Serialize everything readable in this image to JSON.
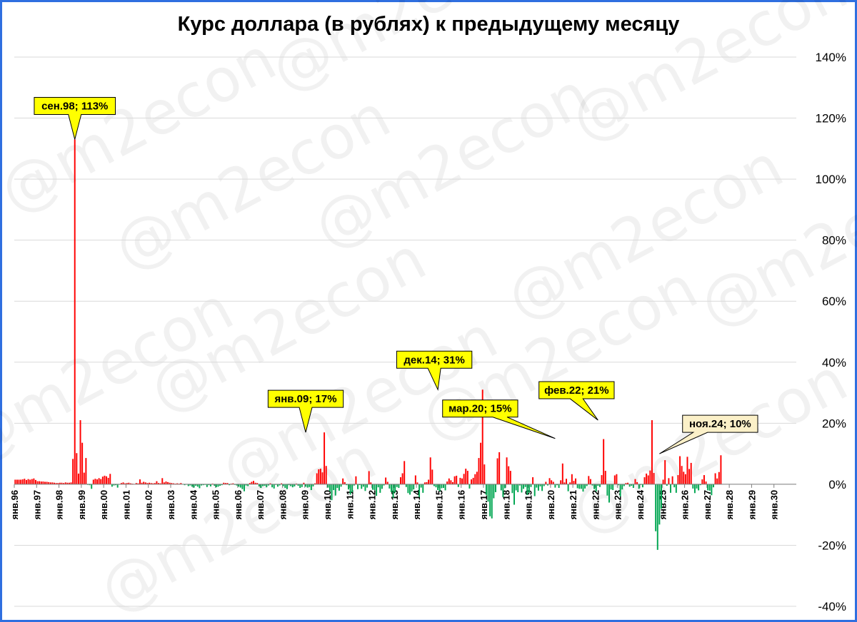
{
  "colors": {
    "frame": "#2f6fe0",
    "positive": "#ff0000",
    "negative": "#00a651",
    "callout_fill": "#ffff00",
    "callout_last_fill": "#fbf0c8",
    "grid": "#d9d9d9"
  },
  "watermark": "@m2econ",
  "chart_data": {
    "type": "bar",
    "title": "Курс доллара (в рублях) к предыдущему месяцу",
    "xlabel": "",
    "ylabel": "",
    "ylim": [
      -40,
      140
    ],
    "y_ticks": [
      {
        "value": 140,
        "label": "140%"
      },
      {
        "value": 120,
        "label": "120%"
      },
      {
        "value": 100,
        "label": "100%"
      },
      {
        "value": 80,
        "label": "80%"
      },
      {
        "value": 60,
        "label": "60%"
      },
      {
        "value": 40,
        "label": "40%"
      },
      {
        "value": 20,
        "label": "20%"
      },
      {
        "value": 0,
        "label": "0%"
      },
      {
        "value": -20,
        "label": "-20%"
      },
      {
        "value": -40,
        "label": "-40%"
      }
    ],
    "grid": true,
    "y_axis_side": "right",
    "x_tick_labels": [
      "янв.96",
      "янв.97",
      "янв.98",
      "янв.99",
      "янв.00",
      "янв.01",
      "янв.02",
      "янв.03",
      "янв.04",
      "янв.05",
      "янв.06",
      "янв.07",
      "янв.08",
      "янв.09",
      "янв.10",
      "янв.11",
      "янв.12",
      "янв.13",
      "янв.14",
      "янв.15",
      "янв.16",
      "янв.17",
      "янв.18",
      "янв.19",
      "янв.20",
      "янв.21",
      "янв.22",
      "янв.23",
      "янв.24",
      "янв.25",
      "янв.26",
      "янв.27",
      "янв.28",
      "янв.29",
      "янв.30"
    ],
    "x_start": "янв.96",
    "x_axis_months": 420,
    "annotations": [
      {
        "month_index": 32,
        "label": "сен.98; 113%",
        "value": 113,
        "style": "highlight"
      },
      {
        "month_index": 156,
        "label": "янв.09; 17%",
        "value": 17,
        "style": "highlight"
      },
      {
        "month_index": 227,
        "label": "дек.14; 31%",
        "value": 31,
        "style": "highlight"
      },
      {
        "month_index": 290,
        "label": "мар.20; 15%",
        "value": 15,
        "style": "highlight"
      },
      {
        "month_index": 313,
        "label": "фев.22; 21%",
        "value": 21,
        "style": "highlight"
      },
      {
        "month_index": 346,
        "label": "ноя.24; 10%",
        "value": 10,
        "style": "latest"
      }
    ],
    "series": [
      {
        "values": [
          1.5,
          1.5,
          1.5,
          1.5,
          1.6,
          1.8,
          1.4,
          1.7,
          1.5,
          1.7,
          1.9,
          1.4,
          1.0,
          1.0,
          0.9,
          0.9,
          0.8,
          0.8,
          0.7,
          0.6,
          0.6,
          0.5,
          0.4,
          0.4,
          0.5,
          0.5,
          0.4,
          0.6,
          0.5,
          0.5,
          0.6,
          8.3,
          113,
          10.2,
          3.5,
          21.0,
          13.6,
          3.8,
          8.6,
          -0.2,
          -0.3,
          -1.5,
          1.5,
          1.8,
          1.6,
          2.0,
          1.7,
          2.5,
          2.8,
          2.6,
          2.1,
          3.4,
          -0.8,
          -0.4,
          -0.3,
          -1.1,
          -0.1,
          0.4,
          0.6,
          0.3,
          0.4,
          0.5,
          0.3,
          0.2,
          0.1,
          0.4,
          0.3,
          1.6,
          0.5,
          0.8,
          0.6,
          0.4,
          0.5,
          0.4,
          0.3,
          0.4,
          1.0,
          0.4,
          0.3,
          2.0,
          0.6,
          0.9,
          0.7,
          0.5,
          0.4,
          0.3,
          0.2,
          0.3,
          0.2,
          0.4,
          0.1,
          -0.3,
          -0.1,
          -0.6,
          -0.4,
          -0.8,
          -1.1,
          -0.5,
          -0.8,
          -1.3,
          -0.4,
          -0.3,
          -0.2,
          -0.9,
          -0.3,
          -0.7,
          0.2,
          -0.5,
          -1.0,
          -0.8,
          -0.5,
          -0.3,
          0.5,
          0.4,
          0.4,
          -0.3,
          0.2,
          0.3,
          -0.2,
          -0.4,
          -0.8,
          -1.1,
          -1.6,
          -2.3,
          -0.4,
          -0.6,
          0.4,
          0.8,
          1.1,
          0.5,
          0.4,
          -0.7,
          -1.2,
          -0.6,
          -0.5,
          -1.0,
          -0.4,
          0.3,
          -1.0,
          -1.4,
          -0.2,
          -0.8,
          -0.4,
          0.3,
          -0.6,
          -1.2,
          -1.6,
          -0.3,
          -0.6,
          -1.0,
          -0.7,
          0.2,
          -0.5,
          -1.2,
          -0.9,
          0.5,
          -0.8,
          -1.1,
          -0.9,
          -1.9,
          -0.7,
          0.3,
          3.6,
          4.9,
          5.1,
          3.9,
          17.0,
          6.0,
          -1.1,
          -2.3,
          -5.2,
          -1.9,
          -3.7,
          -1.2,
          -2.1,
          -0.8,
          1.9,
          0.7,
          -0.3,
          -1.7,
          -3.4,
          -2.6,
          -0.4,
          2.6,
          -1.6,
          -0.3,
          -1.5,
          -0.8,
          -2.2,
          -1.1,
          4.3,
          0.6,
          -1.8,
          -1.9,
          -3.8,
          -1.0,
          -2.8,
          -1.5,
          -0.4,
          2.2,
          0.8,
          -1.4,
          -2.6,
          -4.5,
          -2.7,
          -0.9,
          -1.2,
          2.3,
          3.6,
          7.6,
          -0.9,
          -2.9,
          -3.4,
          -2.4,
          -1.7,
          2.9,
          0.6,
          -4.2,
          -1.1,
          -2.8,
          0.6,
          0.7,
          1.5,
          8.8,
          4.8,
          -0.6,
          -1.0,
          -1.9,
          -2.3,
          -1.3,
          -1.2,
          -2.0,
          0.9,
          1.9,
          1.3,
          0.7,
          2.6,
          2.8,
          -0.9,
          2.1,
          1.9,
          3.4,
          5.1,
          4.4,
          -1.4,
          1.6,
          2.1,
          3.3,
          4.1,
          8.6,
          13.6,
          31.0,
          6.5,
          -3.5,
          -5.7,
          -10.5,
          -11.2,
          -4.6,
          -2.6,
          8.5,
          10.5,
          -2.0,
          -4.2,
          -1.3,
          8.8,
          5.9,
          4.4,
          -2.9,
          -6.7,
          -2.0,
          -2.6,
          -0.4,
          -2.7,
          -1.5,
          -0.9,
          -3.5,
          -2.8,
          -0.9,
          2.3,
          -3.9,
          -1.1,
          -2.1,
          -0.7,
          -2.2,
          -0.6,
          0.8,
          -0.4,
          2.0,
          1.3,
          0.8,
          -1.1,
          -0.3,
          -1.2,
          1.3,
          6.8,
          0.6,
          1.8,
          -2.3,
          0.6,
          3.3,
          1.1,
          1.9,
          -1.3,
          -1.5,
          -1.5,
          -2.4,
          -1.4,
          -0.6,
          2.7,
          1.7,
          -0.4,
          -1.6,
          -2.4,
          -0.5,
          -0.9,
          3.0,
          14.8,
          4.4,
          -3.7,
          -6.0,
          -1.7,
          -1.9,
          2.9,
          3.3,
          -0.3,
          -4.0,
          -1.7,
          -0.6,
          0.4,
          0.5,
          -0.8,
          -0.5,
          -1.2,
          1.7,
          0.7,
          -1.5,
          -0.2,
          -1.0,
          2.3,
          3.5,
          2.9,
          4.5,
          21.0,
          3.7,
          -15.4,
          -21.5,
          -13.2,
          -8.0,
          1.5,
          7.9,
          -0.5,
          2.0,
          -2.8,
          2.6,
          -1.0,
          -2.8,
          3.0,
          9.2,
          6.0,
          4.1,
          3.3,
          9.0,
          5.0,
          7.0,
          -1.4,
          -2.9,
          -1.4,
          -2.0,
          -0.3,
          1.6,
          3.0,
          0.9,
          -2.0,
          -2.1,
          -3.6,
          -1.0,
          3.6,
          1.9,
          4.0,
          9.5
        ]
      }
    ]
  }
}
